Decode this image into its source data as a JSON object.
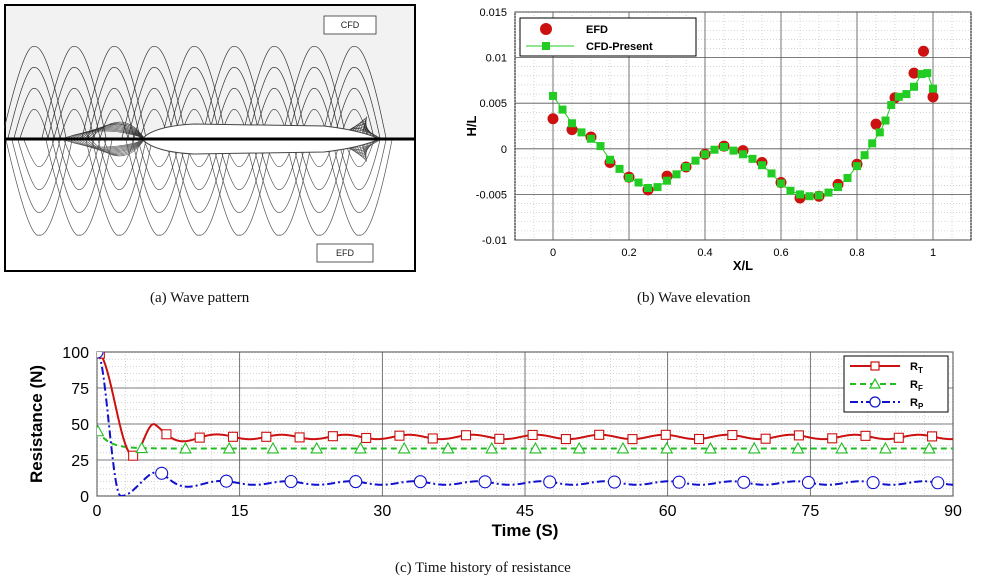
{
  "panel_a": {
    "caption": "(a) Wave pattern",
    "label_top": "CFD",
    "label_bottom": "EFD"
  },
  "chart_data": [
    {
      "type": "scatter",
      "caption": "(b) Wave elevation",
      "xlabel": "X/L",
      "ylabel": "H/L",
      "xlim": [
        -0.1,
        1.1
      ],
      "ylim": [
        -0.01,
        0.015
      ],
      "xticks": [
        0,
        0.2,
        0.4,
        0.6,
        0.8,
        1
      ],
      "xtick_labels": [
        "0",
        "0.2",
        "0.4",
        "0.6",
        "0.8",
        "1"
      ],
      "yticks": [
        -0.01,
        -0.005,
        0,
        0.005,
        0.01,
        0.015
      ],
      "ytick_labels": [
        "-0.01",
        "-0.005",
        "0",
        "0.005",
        "0.01",
        "0.015"
      ],
      "grid": true,
      "legend_position": "top-left",
      "series": [
        {
          "name": "EFD",
          "marker": "circle",
          "color": "#cc1111",
          "x": [
            0,
            0.05,
            0.1,
            0.15,
            0.2,
            0.25,
            0.3,
            0.35,
            0.4,
            0.45,
            0.5,
            0.55,
            0.6,
            0.65,
            0.7,
            0.75,
            0.8,
            0.85,
            0.9,
            0.95,
            0.975,
            1.0
          ],
          "y": [
            0.0033,
            0.0021,
            0.0013,
            -0.0015,
            -0.0031,
            -0.0045,
            -0.003,
            -0.002,
            -0.0006,
            0.0003,
            -0.0002,
            -0.0015,
            -0.0037,
            -0.0054,
            -0.0052,
            -0.0039,
            -0.0017,
            0.0027,
            0.0056,
            0.0083,
            0.0107,
            0.0057
          ]
        },
        {
          "name": "CFD-Present",
          "marker": "square",
          "line": true,
          "color": "#22cc22",
          "x": [
            0,
            0.025,
            0.05,
            0.075,
            0.1,
            0.125,
            0.15,
            0.175,
            0.2,
            0.225,
            0.25,
            0.275,
            0.3,
            0.325,
            0.35,
            0.375,
            0.4,
            0.425,
            0.45,
            0.475,
            0.5,
            0.525,
            0.55,
            0.575,
            0.6,
            0.625,
            0.65,
            0.675,
            0.7,
            0.725,
            0.75,
            0.775,
            0.8,
            0.82,
            0.84,
            0.86,
            0.875,
            0.89,
            0.91,
            0.93,
            0.95,
            0.97,
            0.985,
            1.0
          ],
          "y": [
            0.0058,
            0.0043,
            0.0028,
            0.0018,
            0.0011,
            0.0003,
            -0.0012,
            -0.0022,
            -0.0032,
            -0.0037,
            -0.0043,
            -0.0042,
            -0.0035,
            -0.0028,
            -0.002,
            -0.0013,
            -0.0006,
            -0.0001,
            0.0002,
            -0.0002,
            -0.0006,
            -0.0011,
            -0.0018,
            -0.0027,
            -0.0038,
            -0.0046,
            -0.005,
            -0.0052,
            -0.0051,
            -0.0048,
            -0.0042,
            -0.0032,
            -0.0019,
            -0.0007,
            0.0006,
            0.0018,
            0.0031,
            0.0048,
            0.0057,
            0.006,
            0.0068,
            0.0082,
            0.0083,
            0.0066
          ]
        }
      ]
    },
    {
      "type": "line",
      "caption": "(c) Time history of resistance",
      "xlabel": "Time (S)",
      "ylabel": "Resistance (N)",
      "xlim": [
        0,
        90
      ],
      "ylim": [
        0,
        100
      ],
      "xticks": [
        0,
        15,
        30,
        45,
        60,
        75,
        90
      ],
      "xtick_labels": [
        "0",
        "15",
        "30",
        "45",
        "60",
        "75",
        "90"
      ],
      "yticks": [
        0,
        25,
        50,
        75,
        100
      ],
      "ytick_labels": [
        "0",
        "25",
        "50",
        "75",
        "100"
      ],
      "grid": true,
      "legend_position": "top-right",
      "series": [
        {
          "name": "R",
          "subscript": "T",
          "color": "#cc1111",
          "marker": "square-open",
          "dash": "solid",
          "steady": 41,
          "initial": 100,
          "first_min": 28,
          "first_min_t": 3.8,
          "first_peak": 50,
          "first_peak_t": 6.0,
          "ripple": 1.5,
          "period": 6.7
        },
        {
          "name": "R",
          "subscript": "F",
          "color": "#22bb22",
          "marker": "triangle-open",
          "dash": "dashed",
          "steady": 33,
          "initial": 46,
          "settle_t": 3.0
        },
        {
          "name": "R",
          "subscript": "P",
          "color": "#1111cc",
          "marker": "circle-open",
          "dash": "dashdot",
          "steady": 9,
          "initial": 100,
          "first_min": 0,
          "first_min_t": 2.5,
          "first_peak": 17,
          "first_peak_t": 6.5,
          "ripple": 1.2,
          "period": 6.7
        }
      ]
    }
  ]
}
